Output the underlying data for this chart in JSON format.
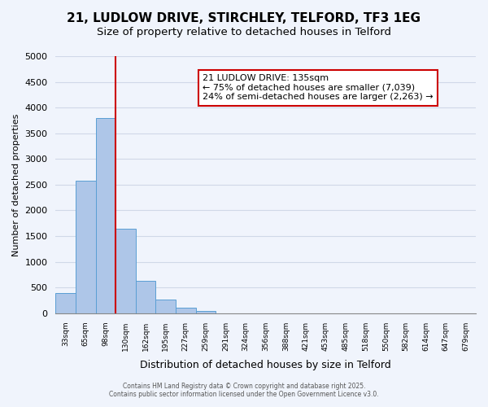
{
  "title": "21, LUDLOW DRIVE, STIRCHLEY, TELFORD, TF3 1EG",
  "subtitle": "Size of property relative to detached houses in Telford",
  "xlabel": "Distribution of detached houses by size in Telford",
  "ylabel": "Number of detached properties",
  "bar_values": [
    400,
    2575,
    3800,
    1650,
    625,
    260,
    100,
    50,
    0,
    0,
    0,
    0,
    0,
    0,
    0,
    0,
    0,
    0,
    0,
    0,
    0
  ],
  "categories": [
    "33sqm",
    "65sqm",
    "98sqm",
    "130sqm",
    "162sqm",
    "195sqm",
    "227sqm",
    "259sqm",
    "291sqm",
    "324sqm",
    "356sqm",
    "388sqm",
    "421sqm",
    "453sqm",
    "485sqm",
    "518sqm",
    "550sqm",
    "582sqm",
    "614sqm",
    "647sqm",
    "679sqm"
  ],
  "bar_color": "#aec6e8",
  "bar_edge_color": "#5a9fd4",
  "vline_pos": 2.5,
  "vline_color": "#cc0000",
  "ylim": [
    0,
    5000
  ],
  "yticks": [
    0,
    500,
    1000,
    1500,
    2000,
    2500,
    3000,
    3500,
    4000,
    4500,
    5000
  ],
  "annotation_title": "21 LUDLOW DRIVE: 135sqm",
  "annotation_line1": "← 75% of detached houses are smaller (7,039)",
  "annotation_line2": "24% of semi-detached houses are larger (2,263) →",
  "annotation_box_color": "#ffffff",
  "annotation_box_edge": "#cc0000",
  "grid_color": "#d0d8e8",
  "bg_color": "#f0f4fc",
  "footer1": "Contains HM Land Registry data © Crown copyright and database right 2025.",
  "footer2": "Contains public sector information licensed under the Open Government Licence v3.0."
}
